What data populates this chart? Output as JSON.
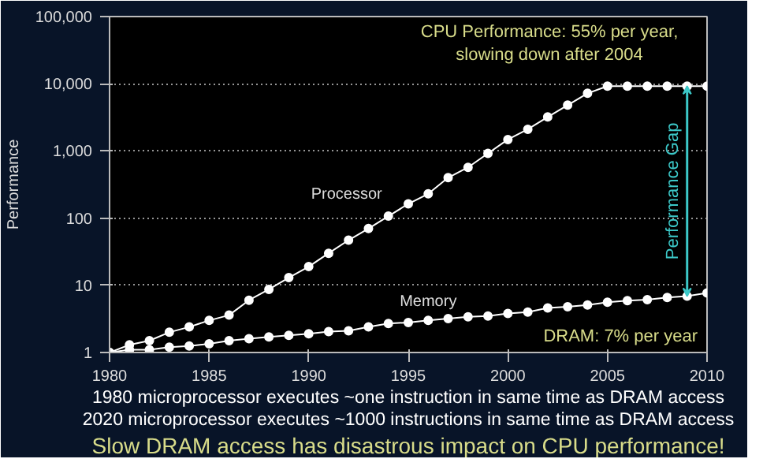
{
  "chart_data": {
    "type": "line",
    "ylabel": "Performance",
    "log": "y",
    "grid": "y",
    "marker": "circle",
    "line_style": "solid",
    "x": [
      1980,
      1981,
      1982,
      1983,
      1984,
      1985,
      1986,
      1987,
      1988,
      1989,
      1990,
      1991,
      1992,
      1993,
      1994,
      1995,
      1996,
      1997,
      1998,
      1999,
      2000,
      2001,
      2002,
      2003,
      2004,
      2005,
      2006,
      2007,
      2008,
      2009,
      2010
    ],
    "xlim": [
      1980,
      2010
    ],
    "xticks": [
      1980,
      1985,
      1990,
      1995,
      2000,
      2005,
      2010
    ],
    "ylim": [
      1,
      100000
    ],
    "yticks": [
      1,
      10,
      100,
      {
        "value": 1000,
        "label": "1,000"
      },
      {
        "value": 10000,
        "label": "10,000"
      },
      {
        "value": 100000,
        "label": "100,000"
      }
    ],
    "series": [
      {
        "name": "Processor",
        "color": "#ffffff",
        "values": [
          1,
          1.3,
          1.5,
          2,
          2.4,
          3,
          3.6,
          6,
          8.7,
          13,
          19,
          30,
          47,
          70,
          107,
          163,
          230,
          400,
          570,
          920,
          1480,
          2100,
          3200,
          4800,
          7200,
          9200,
          9200,
          9200,
          9200,
          9200,
          9200
        ]
      },
      {
        "name": "Memory",
        "color": "#ffffff",
        "values": [
          1,
          1.1,
          1.1,
          1.2,
          1.25,
          1.35,
          1.5,
          1.6,
          1.7,
          1.8,
          1.9,
          2.05,
          2.1,
          2.4,
          2.7,
          2.8,
          3,
          3.2,
          3.4,
          3.5,
          3.8,
          4,
          4.6,
          4.8,
          5.1,
          5.6,
          5.9,
          6.1,
          6.6,
          6.9,
          7.7
        ]
      }
    ],
    "annotations": [
      "Performance Gap",
      "CPU Performance: 55% per year,\nslowing down after 2004",
      "DRAM: 7% per year",
      "1980 microprocessor executes ~one instruction in same time as DRAM access",
      "2020 microprocessor executes ~1000 instructions in same time as DRAM access",
      "Slow DRAM access has disastrous impact on CPU performance!"
    ]
  }
}
